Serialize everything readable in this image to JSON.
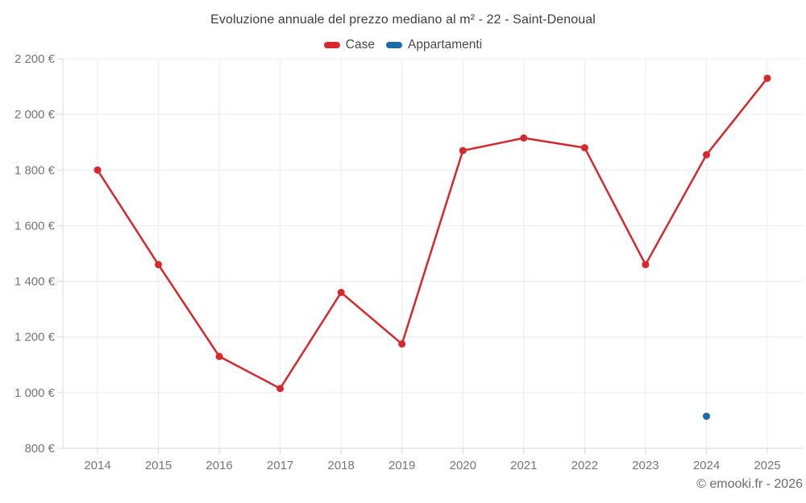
{
  "title": "Evoluzione annuale del prezzo mediano al m² - 22 - Saint-Denoual",
  "attribution": "© emooki.fr - 2026",
  "legend": [
    {
      "label": "Case",
      "color": "#d7282d"
    },
    {
      "label": "Appartamenti",
      "color": "#1b6ca8"
    }
  ],
  "colors": {
    "case_red": "#d7282d",
    "appartamenti_blue": "#1b6ca8",
    "grid": "#ececec",
    "axis": "#d9d9d9",
    "tick_text": "#757575",
    "title_text": "#3d3d3d"
  },
  "chart_data": {
    "type": "line",
    "title": "Evoluzione annuale del prezzo mediano al m² - 22 - Saint-Denoual",
    "categories": [
      "2014",
      "2015",
      "2016",
      "2017",
      "2018",
      "2019",
      "2020",
      "2021",
      "2022",
      "2023",
      "2024",
      "2025"
    ],
    "series": [
      {
        "name": "Case",
        "color": "#d7282d",
        "values": [
          1800,
          1460,
          1130,
          1015,
          1360,
          1175,
          1870,
          1915,
          1880,
          1460,
          1855,
          2130
        ]
      },
      {
        "name": "Appartamenti",
        "color": "#1b6ca8",
        "values": [
          null,
          null,
          null,
          null,
          null,
          null,
          null,
          null,
          null,
          null,
          915,
          null
        ]
      }
    ],
    "ylim": [
      800,
      2200
    ],
    "yticks": [
      {
        "value": 800,
        "label": "800 €"
      },
      {
        "value": 1000,
        "label": "1 000 €"
      },
      {
        "value": 1200,
        "label": "1 200 €"
      },
      {
        "value": 1400,
        "label": "1 400 €"
      },
      {
        "value": 1600,
        "label": "1 600 €"
      },
      {
        "value": 1800,
        "label": "1 800 €"
      },
      {
        "value": 2000,
        "label": "2 000 €"
      },
      {
        "value": 2200,
        "label": "2 200 €"
      }
    ],
    "grid": true,
    "legend_position": "top",
    "grid_color": "#ececec",
    "axis_color": "#d9d9d9"
  }
}
